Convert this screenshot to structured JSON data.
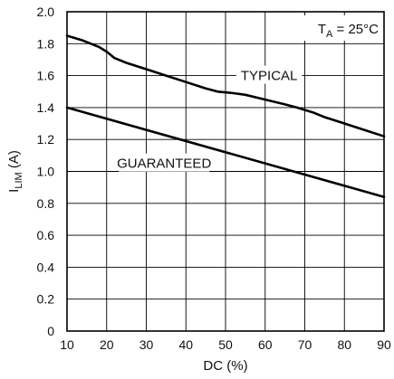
{
  "chart_data": {
    "type": "line",
    "x_label_main": "DC (%)",
    "y_label_main": "I",
    "y_label_sub": "LIM",
    "y_label_unit": " (A)",
    "xlim": [
      10,
      90
    ],
    "ylim": [
      0,
      2.0
    ],
    "x_ticks": [
      "10",
      "20",
      "30",
      "40",
      "50",
      "60",
      "70",
      "80",
      "90"
    ],
    "y_ticks": [
      "0",
      "0.2",
      "0.4",
      "0.6",
      "0.8",
      "1.0",
      "1.2",
      "1.4",
      "1.6",
      "1.8",
      "2.0"
    ],
    "grid": true,
    "annotation": {
      "main": "T",
      "sub": "A",
      "rest": " = 25°C"
    },
    "series": [
      {
        "name": "TYPICAL",
        "color": "#000000",
        "points": [
          [
            10,
            1.85
          ],
          [
            14,
            1.82
          ],
          [
            18,
            1.78
          ],
          [
            20,
            1.75
          ],
          [
            22,
            1.71
          ],
          [
            25,
            1.68
          ],
          [
            30,
            1.64
          ],
          [
            35,
            1.6
          ],
          [
            40,
            1.56
          ],
          [
            45,
            1.52
          ],
          [
            48,
            1.5
          ],
          [
            52,
            1.49
          ],
          [
            55,
            1.48
          ],
          [
            60,
            1.45
          ],
          [
            65,
            1.42
          ],
          [
            68,
            1.4
          ],
          [
            72,
            1.37
          ],
          [
            75,
            1.34
          ],
          [
            80,
            1.3
          ],
          [
            85,
            1.26
          ],
          [
            90,
            1.22
          ]
        ]
      },
      {
        "name": "GUARANTEED",
        "color": "#000000",
        "points": [
          [
            10,
            1.4
          ],
          [
            90,
            0.84
          ]
        ]
      }
    ],
    "labels": [
      {
        "series": 0,
        "text": "TYPICAL",
        "x": 61,
        "y": 1.6
      },
      {
        "series": 1,
        "text": "GUARANTEED",
        "x": 34.5,
        "y": 1.05
      }
    ]
  }
}
